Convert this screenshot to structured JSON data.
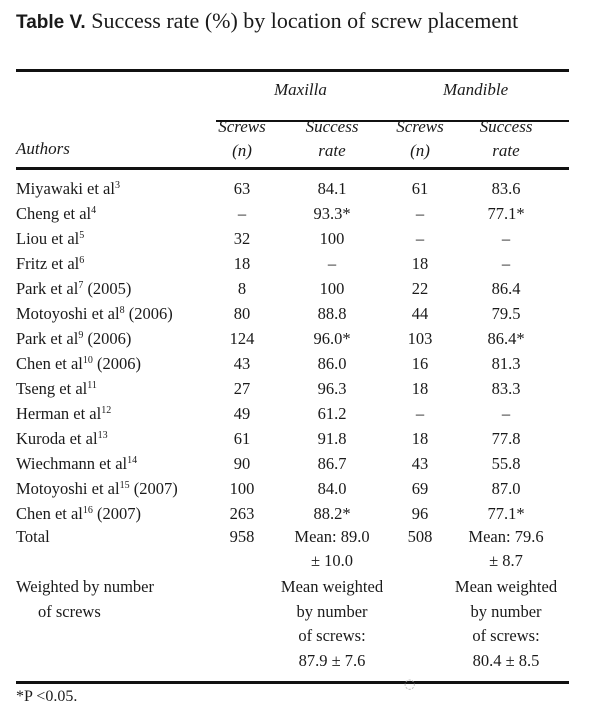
{
  "table": {
    "label": "Table V.",
    "caption": "Success rate (%) by location of screw placement",
    "groups": [
      "Maxilla",
      "Mandible"
    ],
    "header": {
      "authors": "Authors",
      "screws": "Screws",
      "n": "(n)",
      "success": "Success",
      "rate": "rate"
    },
    "rows": [
      {
        "author": "Miyawaki et al",
        "ref": "3",
        "year": "",
        "max_n": "63",
        "max_rate": "84.1",
        "man_n": "61",
        "man_rate": "83.6"
      },
      {
        "author": "Cheng et al",
        "ref": "4",
        "year": "",
        "max_n": "–",
        "max_rate": "93.3*",
        "man_n": "–",
        "man_rate": "77.1*"
      },
      {
        "author": "Liou et al",
        "ref": "5",
        "year": "",
        "max_n": "32",
        "max_rate": "100",
        "man_n": "–",
        "man_rate": "–"
      },
      {
        "author": "Fritz et al",
        "ref": "6",
        "year": "",
        "max_n": "18",
        "max_rate": "–",
        "man_n": "18",
        "man_rate": "–"
      },
      {
        "author": "Park et al",
        "ref": "7",
        "year": " (2005)",
        "max_n": "8",
        "max_rate": "100",
        "man_n": "22",
        "man_rate": "86.4"
      },
      {
        "author": "Motoyoshi et al",
        "ref": "8",
        "year": " (2006)",
        "max_n": "80",
        "max_rate": "88.8",
        "man_n": "44",
        "man_rate": "79.5"
      },
      {
        "author": "Park et al",
        "ref": "9",
        "year": " (2006)",
        "max_n": "124",
        "max_rate": "96.0*",
        "man_n": "103",
        "man_rate": "86.4*"
      },
      {
        "author": "Chen et al",
        "ref": "10",
        "year": " (2006)",
        "max_n": "43",
        "max_rate": "86.0",
        "man_n": "16",
        "man_rate": "81.3"
      },
      {
        "author": "Tseng et al",
        "ref": "11",
        "year": "",
        "max_n": "27",
        "max_rate": "96.3",
        "man_n": "18",
        "man_rate": "83.3"
      },
      {
        "author": "Herman et al",
        "ref": "12",
        "year": "",
        "max_n": "49",
        "max_rate": "61.2",
        "man_n": "–",
        "man_rate": "–"
      },
      {
        "author": "Kuroda et al",
        "ref": "13",
        "year": "",
        "max_n": "61",
        "max_rate": "91.8",
        "man_n": "18",
        "man_rate": "77.8"
      },
      {
        "author": "Wiechmann et al",
        "ref": "14",
        "year": "",
        "max_n": "90",
        "max_rate": "86.7",
        "man_n": "43",
        "man_rate": "55.8"
      },
      {
        "author": "Motoyoshi et al",
        "ref": "15",
        "year": " (2007)",
        "max_n": "100",
        "max_rate": "84.0",
        "man_n": "69",
        "man_rate": "87.0"
      },
      {
        "author": "Chen et al",
        "ref": "16",
        "year": " (2007)",
        "max_n": "263",
        "max_rate": "88.2*",
        "man_n": "96",
        "man_rate": "77.1*"
      }
    ],
    "total": {
      "label": "Total",
      "max_n": "958",
      "max_rate_1": "Mean: 89.0",
      "max_rate_2": "± 10.0",
      "man_n": "508",
      "man_rate_1": "Mean: 79.6",
      "man_rate_2": "± 8.7"
    },
    "weighted": {
      "label_1": "Weighted by number",
      "label_2": "of screws",
      "max": [
        "Mean weighted",
        "by number",
        "of screws:",
        "87.9 ± 7.6"
      ],
      "man": [
        "Mean weighted",
        "by number",
        "of screws:",
        "80.4 ± 8.5"
      ]
    },
    "footnote": "*P <0.05."
  },
  "watermark": {
    "icon": "wechat-icon"
  }
}
